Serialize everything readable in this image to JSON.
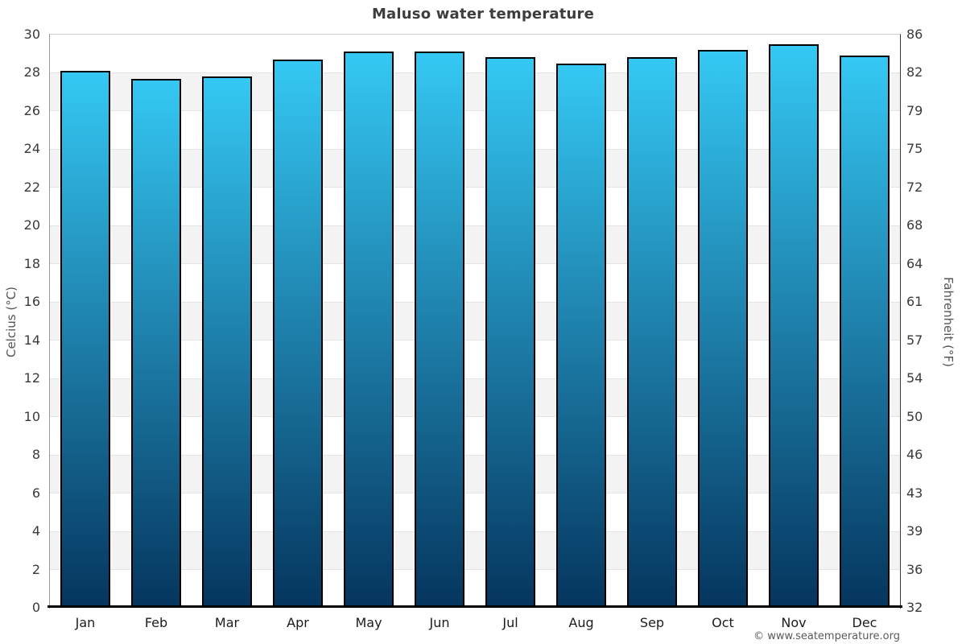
{
  "page": {
    "footer": "© www.seatemperature.org"
  },
  "chart_data": {
    "type": "bar",
    "title": "Maluso water temperature",
    "categories": [
      "Jan",
      "Feb",
      "Mar",
      "Apr",
      "May",
      "Jun",
      "Jul",
      "Aug",
      "Sep",
      "Oct",
      "Nov",
      "Dec"
    ],
    "values": [
      28.1,
      27.7,
      27.8,
      28.7,
      29.1,
      29.1,
      28.8,
      28.5,
      28.8,
      29.2,
      29.5,
      28.9
    ],
    "unit": "°C",
    "ylabel_left": "Celcius (°C)",
    "ylabel_right": "Fahrenheit (°F)",
    "ylim": [
      0,
      30
    ],
    "ytick_step_celsius": 2,
    "yticks_left": [
      30,
      28,
      26,
      24,
      22,
      20,
      18,
      16,
      14,
      12,
      10,
      8,
      6,
      4,
      2,
      0
    ],
    "yticks_right": [
      86,
      82,
      79,
      75,
      72,
      68,
      64,
      61,
      57,
      54,
      50,
      46,
      43,
      39,
      36,
      32
    ],
    "grid": "alternating horizontal 2-degree bands",
    "legend": "none",
    "colors": {
      "bar_gradient_top": "#35c8f4",
      "bar_gradient_bottom": "#05355e",
      "bar_border": "#000000",
      "band_gray": "#f3f3f3",
      "band_white": "#ffffff",
      "title_color": "#3d3d3d",
      "tick_color": "#3a3a3a",
      "axis_title_color": "#555555",
      "footer_color": "#5a5a5a"
    }
  }
}
